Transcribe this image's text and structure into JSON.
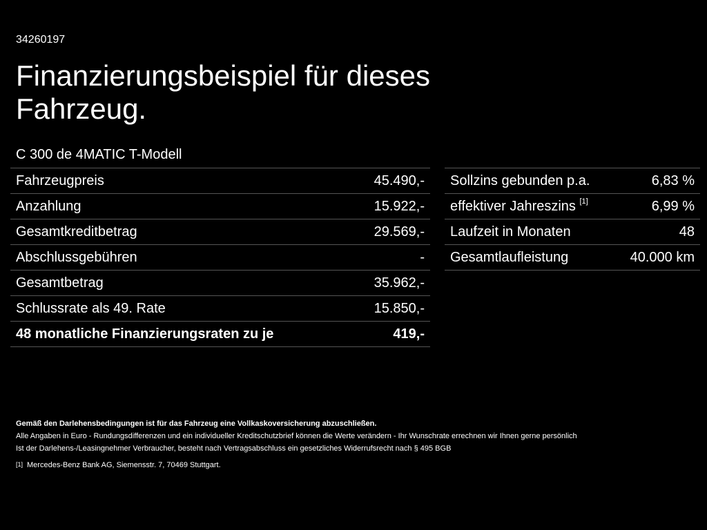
{
  "reference_number": "34260197",
  "heading": "Finanzierungsbeispiel für dieses Fahrzeug.",
  "model_name": "C 300 de 4MATIC T-Modell",
  "left_table": [
    {
      "label": "Fahrzeugpreis",
      "value": "45.490,-"
    },
    {
      "label": "Anzahlung",
      "value": "15.922,-"
    },
    {
      "label": "Gesamtkreditbetrag",
      "value": "29.569,-"
    },
    {
      "label": "Abschlussgebühren",
      "value": "-"
    },
    {
      "label": "Gesamtbetrag",
      "value": "35.962,-"
    },
    {
      "label": "Schlussrate als 49. Rate",
      "value": "15.850,-"
    },
    {
      "label": "48 monatliche Finanzierungsraten zu je",
      "value": "419,-"
    }
  ],
  "right_table": [
    {
      "label": "Sollzins gebunden p.a.",
      "sup": "",
      "value": "6,83 %"
    },
    {
      "label": "effektiver Jahreszins",
      "sup": "[1]",
      "value": "6,99 %"
    },
    {
      "label": "Laufzeit in Monaten",
      "sup": "",
      "value": "48"
    },
    {
      "label": "Gesamtlaufleistung",
      "sup": "",
      "value": "40.000 km"
    }
  ],
  "notes": {
    "insurance_note": "Gemäß den Darlehensbedingungen ist für das Fahrzeug eine Vollkaskoversicherung abzuschließen.",
    "currency_note": "Alle Angaben in Euro - Rundungsdifferenzen und ein individueller Kreditschutzbrief können die Werte verändern - Ihr Wunschrate errechnen wir Ihnen gerne persönlich",
    "withdrawal_note": "Ist der Darlehens-/Leasingnehmer Verbraucher, besteht nach Vertragsabschluss ein gesetzliches Widerrufsrecht nach § 495 BGB",
    "footnote_marker": "[1]",
    "footnote_text": "Mercedes-Benz Bank AG, Siemensstr. 7, 70469 Stuttgart."
  }
}
